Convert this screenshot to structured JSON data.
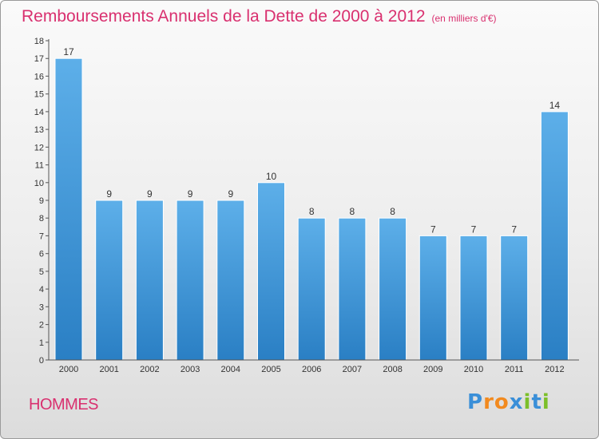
{
  "title": "Remboursements Annuels de la Dette de 2000 à 2012",
  "title_unit": "(en milliers d'€)",
  "place": "HOMMES",
  "logo": {
    "text": "Proxiti",
    "letter_colors": [
      "#3a8fd8",
      "#f28a1f",
      "#f28a1f",
      "#3a8fd8",
      "#7cbf2a",
      "#3a8fd8",
      "#7cbf2a"
    ]
  },
  "colors": {
    "title": "#d9306f",
    "bar_top": "#5dafe9",
    "bar_bottom": "#2a7fc4",
    "axis": "#555555"
  },
  "chart_data": {
    "type": "bar",
    "title": "Remboursements Annuels de la Dette de 2000 à 2012",
    "categories": [
      "2000",
      "2001",
      "2002",
      "2003",
      "2004",
      "2005",
      "2006",
      "2007",
      "2008",
      "2009",
      "2010",
      "2011",
      "2012"
    ],
    "values": [
      17,
      9,
      9,
      9,
      9,
      10,
      8,
      8,
      8,
      7,
      7,
      7,
      14
    ],
    "ylim": [
      0,
      18
    ],
    "yticks": [
      "0",
      "1",
      "2",
      "3",
      "4",
      "5",
      "6",
      "7",
      "8",
      "9",
      "10",
      "11",
      "12",
      "13",
      "14",
      "15",
      "16",
      "17",
      "18"
    ],
    "grid": false,
    "data_labels": true
  }
}
